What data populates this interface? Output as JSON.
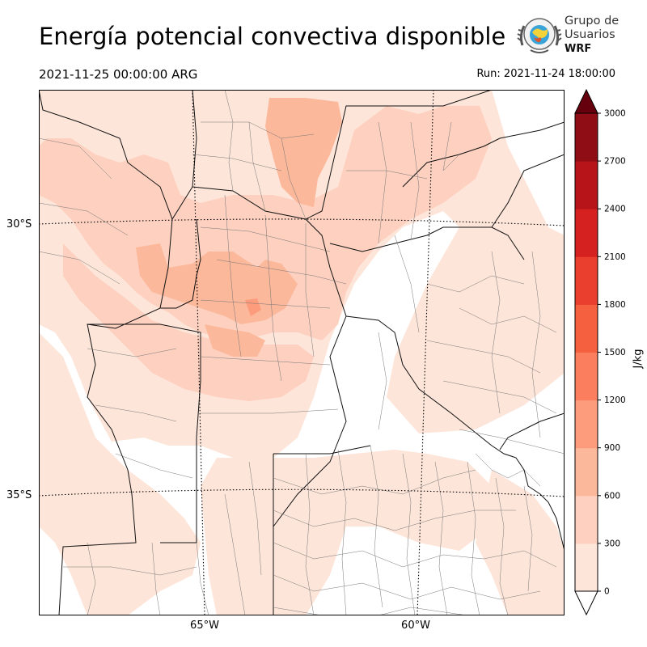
{
  "header": {
    "title": "Energía potencial convectiva disponible",
    "valid_time": "2021-11-25 00:00:00 ARG",
    "run": "Run: 2021-11-24 18:00:00"
  },
  "logo": {
    "line1": "Grupo de",
    "line2": "Usuarios",
    "line3": "WRF"
  },
  "map": {
    "lat_labels": [
      "30°S",
      "35°S"
    ],
    "lon_labels": [
      "65°W",
      "60°W"
    ]
  },
  "colorbar": {
    "unit": "J/kg",
    "ticks": [
      "0",
      "300",
      "600",
      "900",
      "1200",
      "1500",
      "1800",
      "2100",
      "2400",
      "2700",
      "3000"
    ],
    "colors": [
      "#fee5d9",
      "#fdd0bf",
      "#fcb89b",
      "#fc9c7d",
      "#fb7f5f",
      "#f5603f",
      "#ea3f2e",
      "#d52221",
      "#b71419",
      "#8f0d14"
    ],
    "over_color": "#67000d",
    "under_color": "#ffffff"
  }
}
